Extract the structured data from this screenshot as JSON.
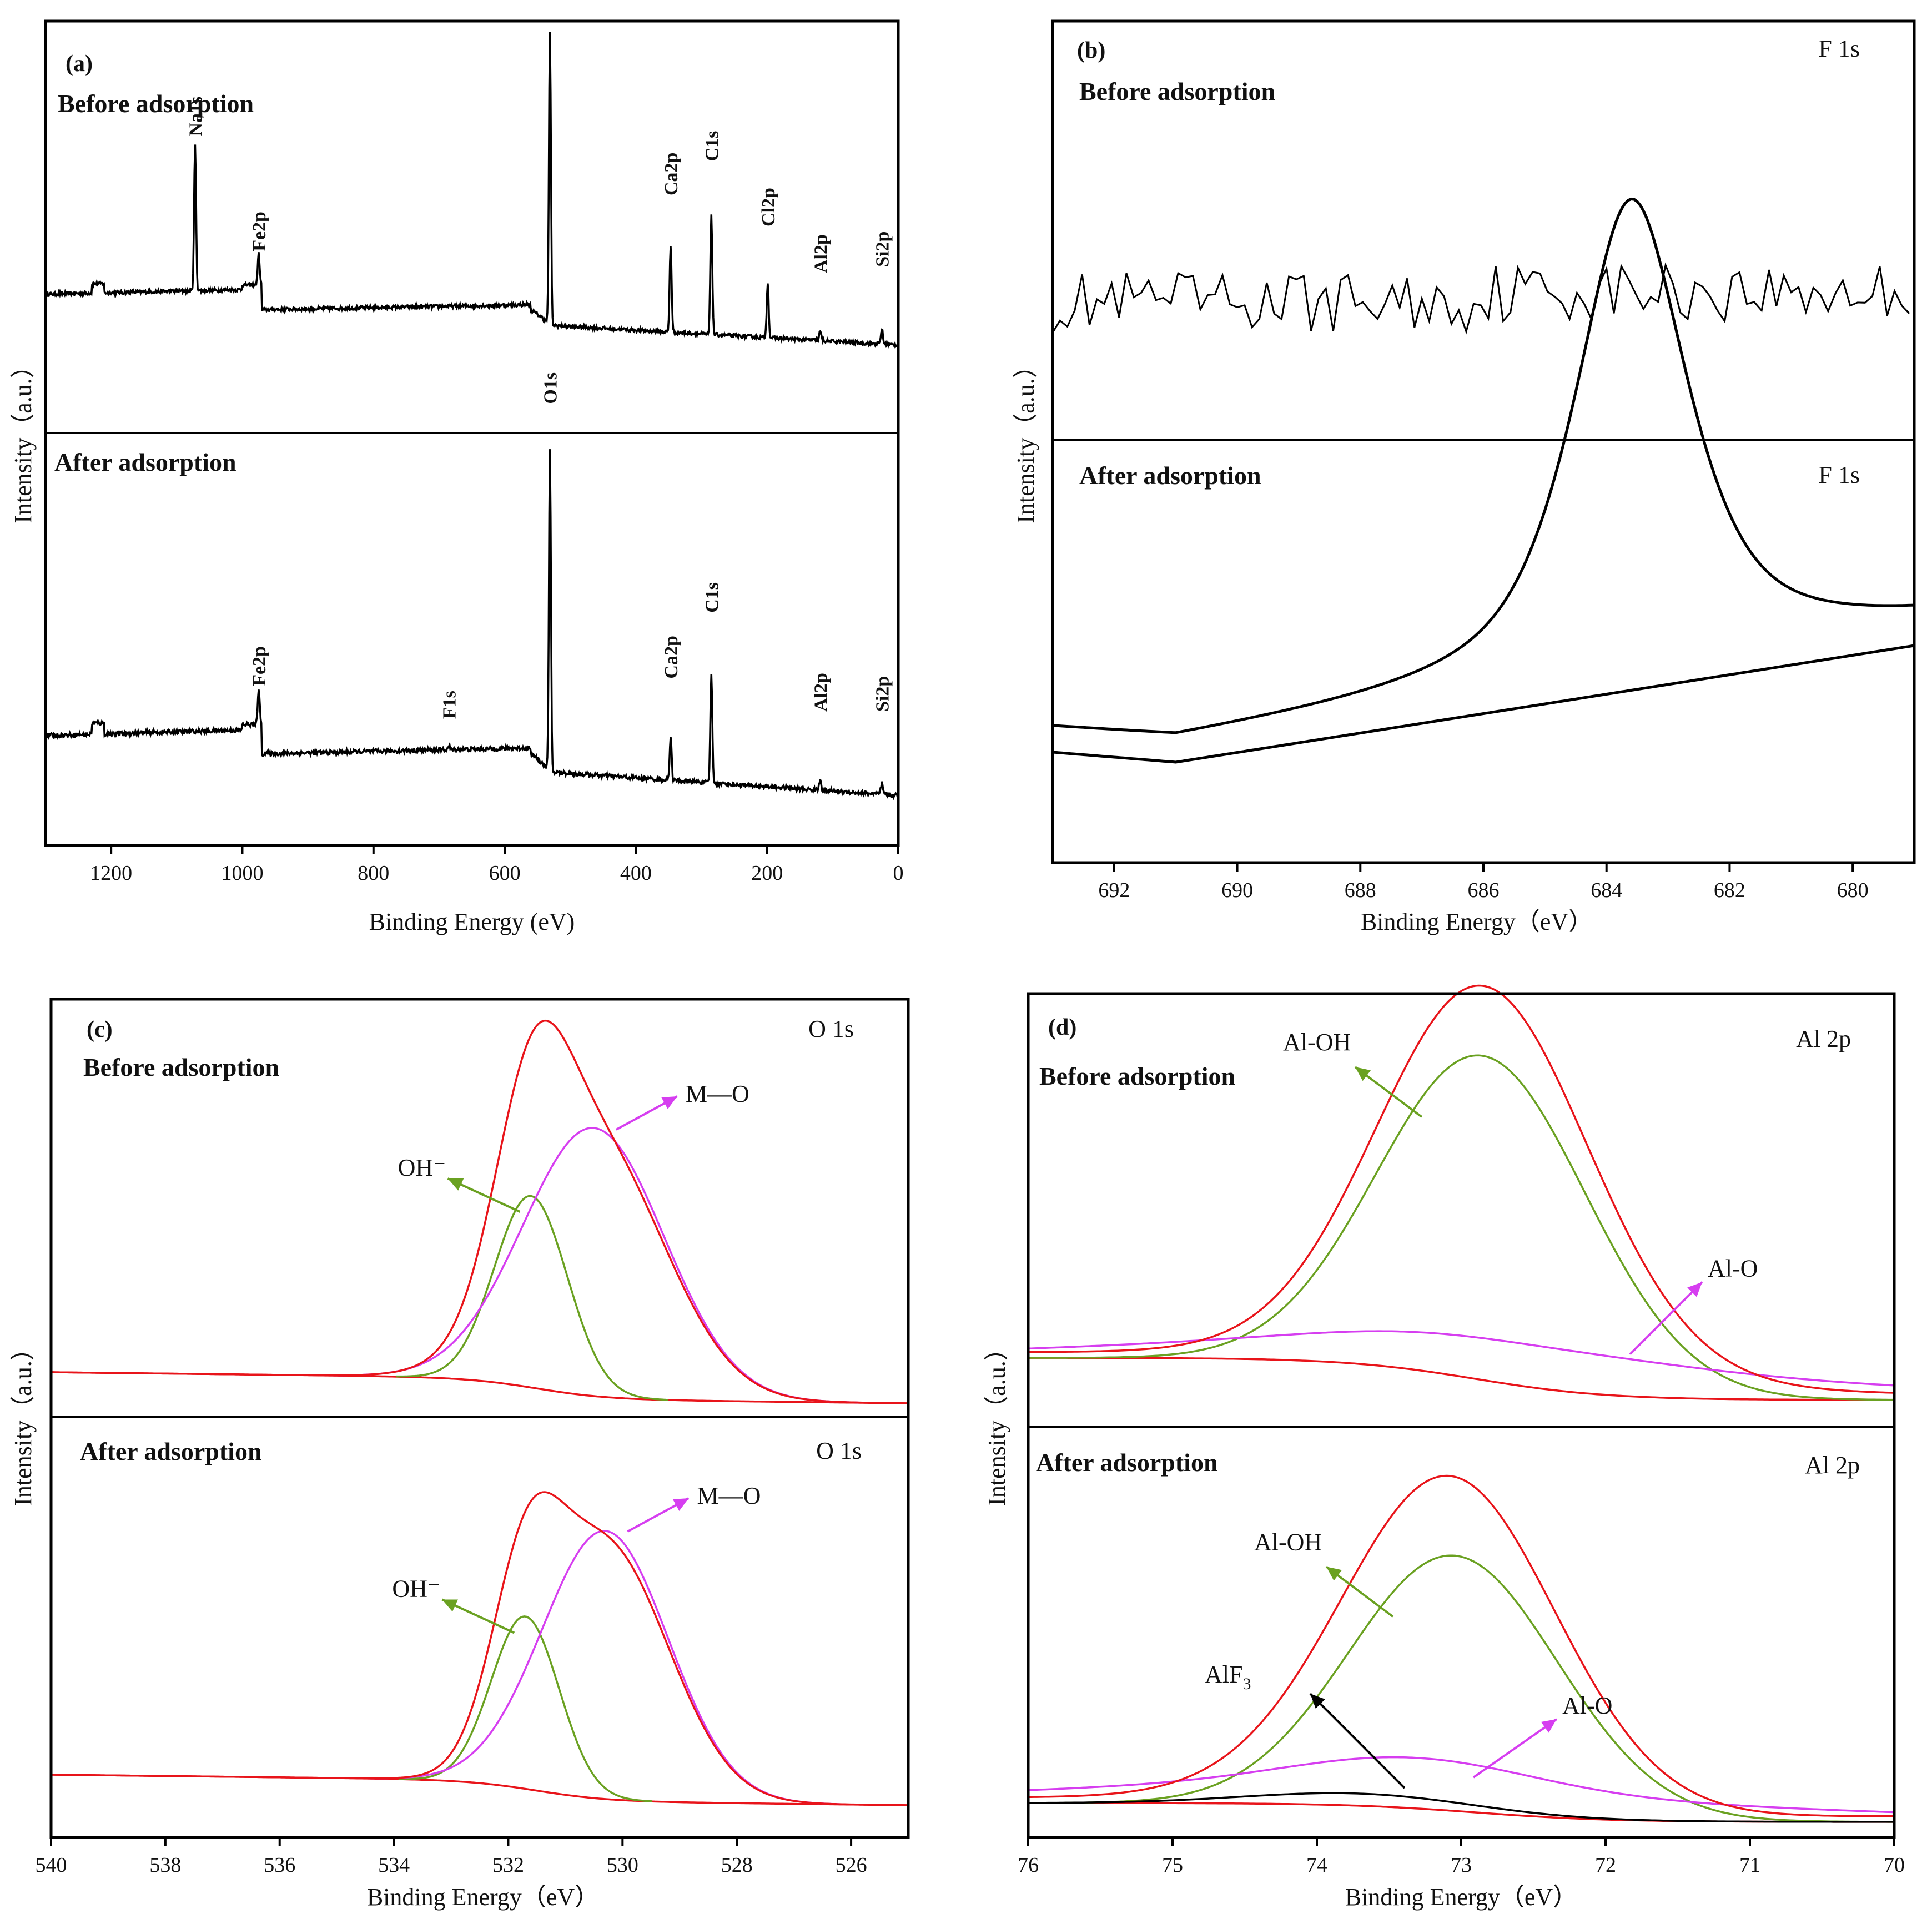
{
  "colors": {
    "envelope": "#e8141a",
    "oh_component": "#6aa121",
    "mo_component": "#d63ef0",
    "alf3_component": "#000000",
    "survey_line": "#000000"
  },
  "chart_data": [
    {
      "id": "a",
      "type": "line",
      "panel_label": "(a)",
      "xlabel": "Binding Energy (eV)",
      "ylabel": "Intensity（a.u.）",
      "xlim": [
        1300,
        0
      ],
      "x_reversed": true,
      "xticks": [
        1200,
        1000,
        800,
        600,
        400,
        200,
        0
      ],
      "grid": false,
      "subpanels": [
        {
          "label": "Before adsorption",
          "peaks": [
            {
              "name": "Na1s",
              "x": 1072,
              "height": 0.47
            },
            {
              "name": "Fe2p",
              "x": 975,
              "height": 0.1
            },
            {
              "name": "O1s",
              "x": 531,
              "height": 0.94
            },
            {
              "name": "Ca2p",
              "x": 347,
              "height": 0.28
            },
            {
              "name": "C1s",
              "x": 285,
              "height": 0.39
            },
            {
              "name": "Cl2p",
              "x": 199,
              "height": 0.18
            },
            {
              "name": "Al2p",
              "x": 119,
              "height": 0.03
            },
            {
              "name": "Si2p",
              "x": 25,
              "height": 0.05
            }
          ]
        },
        {
          "label": "After adsorption",
          "peaks": [
            {
              "name": "Fe2p",
              "x": 975,
              "height": 0.1
            },
            {
              "name": "F1s",
              "x": 685,
              "height": 0.01
            },
            {
              "name": "O1s",
              "x": 531,
              "height": 0.87
            },
            {
              "name": "Ca2p",
              "x": 347,
              "height": 0.12
            },
            {
              "name": "C1s",
              "x": 285,
              "height": 0.3
            },
            {
              "name": "Al2p",
              "x": 119,
              "height": 0.03
            },
            {
              "name": "Si2p",
              "x": 25,
              "height": 0.03
            }
          ]
        }
      ]
    },
    {
      "id": "b",
      "type": "line",
      "panel_label": "(b)",
      "xlabel": "Binding Energy（eV）",
      "ylabel": "Intensity（a.u.）",
      "xlim": [
        693,
        679
      ],
      "x_reversed": true,
      "xticks": [
        692,
        690,
        688,
        686,
        684,
        682,
        680
      ],
      "grid": false,
      "subpanels": [
        {
          "label": "Before adsorption",
          "region": "F 1s",
          "series": [
            {
              "type": "noise",
              "level": 0.5
            }
          ]
        },
        {
          "label": "After adsorption",
          "region": "F 1s",
          "series": [
            {
              "type": "envelope",
              "center": 683.6,
              "fwhm": 2.2,
              "height": 1.0
            },
            {
              "type": "background"
            }
          ]
        }
      ]
    },
    {
      "id": "c",
      "type": "line",
      "panel_label": "(c)",
      "xlabel": "Binding Energy（eV）",
      "ylabel": "Intensity（a.u.）",
      "xlim": [
        540,
        525
      ],
      "x_reversed": true,
      "xticks": [
        540,
        538,
        536,
        534,
        532,
        530,
        528,
        526
      ],
      "grid": false,
      "subpanels": [
        {
          "label": "Before adsorption",
          "region": "O 1s",
          "components": [
            {
              "name": "OH⁻",
              "center": 531.6,
              "fwhm": 1.5,
              "height": 0.5,
              "color": "oh_component"
            },
            {
              "name": "M—O",
              "center": 530.5,
              "fwhm": 2.9,
              "height": 0.7,
              "color": "mo_component"
            }
          ],
          "envelope_peak": 531.3
        },
        {
          "label": "After adsorption",
          "region": "O 1s",
          "components": [
            {
              "name": "OH⁻",
              "center": 531.7,
              "fwhm": 1.4,
              "height": 0.45,
              "color": "oh_component"
            },
            {
              "name": "M—O",
              "center": 530.3,
              "fwhm": 2.6,
              "height": 0.7,
              "color": "mo_component"
            }
          ],
          "envelope_peak": 531.3
        }
      ]
    },
    {
      "id": "d",
      "type": "line",
      "panel_label": "(d)",
      "xlabel": "Binding Energy（eV）",
      "ylabel": "Intensity（a.u.）",
      "xlim": [
        76,
        70
      ],
      "x_reversed": true,
      "xticks": [
        76,
        75,
        74,
        73,
        72,
        71,
        70
      ],
      "grid": false,
      "subpanels": [
        {
          "label": "Before adsorption",
          "region": "Al 2p",
          "components": [
            {
              "name": "Al-OH",
              "center": 72.85,
              "fwhm": 1.7,
              "height": 0.8,
              "color": "oh_component"
            },
            {
              "name": "Al-O",
              "center": 72.6,
              "fwhm": 2.6,
              "height": 0.05,
              "color": "mo_component"
            }
          ]
        },
        {
          "label": "After adsorption",
          "region": "Al 2p",
          "components": [
            {
              "name": "Al-OH",
              "center": 73.05,
              "fwhm": 1.7,
              "height": 0.63,
              "color": "oh_component"
            },
            {
              "name": "Al-O",
              "center": 73.3,
              "fwhm": 2.0,
              "height": 0.07,
              "color": "mo_component"
            },
            {
              "name": "AlF",
              "subscript": "3",
              "center": 73.7,
              "fwhm": 1.8,
              "height": 0.03,
              "color": "alf3_component"
            }
          ]
        }
      ]
    }
  ]
}
